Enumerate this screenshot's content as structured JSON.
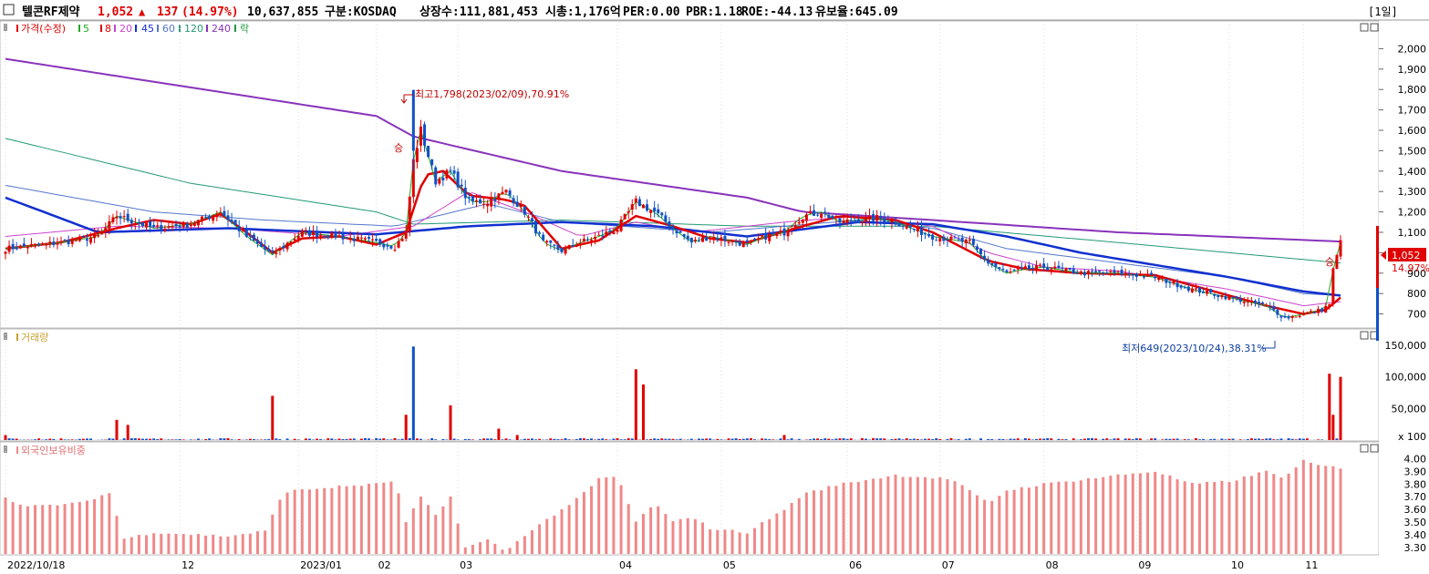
{
  "header": {
    "checkbox": "",
    "stock_name": "텔콘RF제약",
    "price": "1,052",
    "change_arrow": "▲",
    "change": "137",
    "change_pct": "(14.97%)",
    "volume": "10,637,855",
    "market": "구분:KOSDAQ",
    "shares": "상장수:111,881,453",
    "market_cap": "시총:1,176억",
    "per": "PER:0.00",
    "pbr": "PBR:1.18",
    "roe": "ROE:-44.13",
    "reserve": "유보율:645.09",
    "period": "[1일]"
  },
  "legend": {
    "price_label": "가격(수정)",
    "ma_labels": [
      "5",
      "8",
      "20",
      "45",
      "60",
      "120",
      "240"
    ],
    "fall_label": "락"
  },
  "panels": {
    "volume_title": "거래량",
    "foreign_title": "외국인보유비중"
  },
  "annotations": {
    "high": "최고1,798(2023/02/09),70.91%",
    "low": "최저649(2023/10/24),38.31%",
    "rights_mark": "승",
    "current_price": "1,052",
    "current_pct": "14.97%"
  },
  "colors": {
    "up": "#e00000",
    "down": "#1050c8",
    "ma5": "#22aa22",
    "ma8": "#e00000",
    "ma20": "#cc44cc",
    "ma45": "#1030d0",
    "ma60": "#5577cc",
    "ma120": "#229977",
    "ma240": "#8833bb",
    "foreign_bar": "#f08888"
  },
  "chart_data": [
    {
      "type": "line",
      "name": "price",
      "y_ticks": [
        "2,000",
        "1,900",
        "1,800",
        "1,700",
        "1,600",
        "1,500",
        "1,400",
        "1,300",
        "1,200",
        "1,100",
        "1,000",
        "900",
        "800",
        "700"
      ],
      "ylim": [
        640,
        2060
      ],
      "x_ticks": [
        "2022/10/18",
        "12",
        "2023/01",
        "02",
        "03",
        "04",
        "05",
        "06",
        "07",
        "08",
        "09",
        "10",
        "11"
      ],
      "close_keypoints": [
        [
          0,
          1020
        ],
        [
          15,
          1050
        ],
        [
          25,
          1080
        ],
        [
          30,
          1180
        ],
        [
          40,
          1120
        ],
        [
          50,
          1140
        ],
        [
          58,
          1200
        ],
        [
          65,
          1080
        ],
        [
          72,
          990
        ],
        [
          80,
          1100
        ],
        [
          90,
          1080
        ],
        [
          100,
          1050
        ],
        [
          105,
          1030
        ],
        [
          108,
          1100
        ],
        [
          110,
          1450
        ],
        [
          112,
          1600
        ],
        [
          116,
          1350
        ],
        [
          120,
          1400
        ],
        [
          125,
          1250
        ],
        [
          130,
          1250
        ],
        [
          135,
          1300
        ],
        [
          140,
          1200
        ],
        [
          145,
          1050
        ],
        [
          150,
          1010
        ],
        [
          155,
          1050
        ],
        [
          160,
          1080
        ],
        [
          165,
          1120
        ],
        [
          170,
          1250
        ],
        [
          175,
          1200
        ],
        [
          180,
          1120
        ],
        [
          185,
          1050
        ],
        [
          190,
          1080
        ],
        [
          195,
          1060
        ],
        [
          200,
          1040
        ],
        [
          205,
          1080
        ],
        [
          210,
          1100
        ],
        [
          215,
          1180
        ],
        [
          220,
          1200
        ],
        [
          225,
          1150
        ],
        [
          235,
          1170
        ],
        [
          240,
          1150
        ],
        [
          250,
          1080
        ],
        [
          260,
          1050
        ],
        [
          265,
          950
        ],
        [
          270,
          900
        ],
        [
          275,
          920
        ],
        [
          280,
          930
        ],
        [
          290,
          900
        ],
        [
          300,
          900
        ],
        [
          310,
          880
        ],
        [
          320,
          820
        ],
        [
          330,
          780
        ],
        [
          340,
          740
        ],
        [
          345,
          680
        ],
        [
          350,
          700
        ],
        [
          355,
          720
        ],
        [
          357,
          750
        ],
        [
          358,
          915
        ],
        [
          360,
          1052
        ]
      ],
      "ma_keypoints": {
        "ma240": [
          [
            0,
            1950
          ],
          [
            50,
            1810
          ],
          [
            100,
            1670
          ],
          [
            110,
            1570
          ],
          [
            150,
            1400
          ],
          [
            200,
            1270
          ],
          [
            215,
            1200
          ],
          [
            250,
            1160
          ],
          [
            300,
            1100
          ],
          [
            360,
            1055
          ]
        ],
        "ma120": [
          [
            0,
            1560
          ],
          [
            50,
            1340
          ],
          [
            100,
            1200
          ],
          [
            110,
            1140
          ],
          [
            150,
            1160
          ],
          [
            200,
            1130
          ],
          [
            250,
            1130
          ],
          [
            300,
            1050
          ],
          [
            360,
            950
          ]
        ],
        "ma60": [
          [
            0,
            1330
          ],
          [
            40,
            1200
          ],
          [
            70,
            1160
          ],
          [
            105,
            1130
          ],
          [
            130,
            1240
          ],
          [
            150,
            1150
          ],
          [
            190,
            1100
          ],
          [
            230,
            1160
          ],
          [
            250,
            1120
          ],
          [
            270,
            1020
          ],
          [
            300,
            950
          ],
          [
            330,
            880
          ],
          [
            350,
            800
          ],
          [
            360,
            790
          ]
        ],
        "ma45": [
          [
            0,
            1270
          ],
          [
            25,
            1100
          ],
          [
            60,
            1120
          ],
          [
            100,
            1090
          ],
          [
            125,
            1130
          ],
          [
            150,
            1150
          ],
          [
            175,
            1130
          ],
          [
            200,
            1080
          ],
          [
            230,
            1150
          ],
          [
            250,
            1140
          ],
          [
            270,
            1080
          ],
          [
            290,
            1000
          ],
          [
            330,
            880
          ],
          [
            350,
            810
          ],
          [
            360,
            790
          ]
        ],
        "ma20": [
          [
            0,
            1080
          ],
          [
            30,
            1130
          ],
          [
            60,
            1120
          ],
          [
            90,
            1080
          ],
          [
            110,
            1130
          ],
          [
            125,
            1300
          ],
          [
            140,
            1200
          ],
          [
            155,
            1080
          ],
          [
            170,
            1150
          ],
          [
            185,
            1100
          ],
          [
            210,
            1150
          ],
          [
            230,
            1180
          ],
          [
            250,
            1130
          ],
          [
            265,
            1000
          ],
          [
            280,
            930
          ],
          [
            300,
            910
          ],
          [
            330,
            820
          ],
          [
            350,
            740
          ],
          [
            360,
            760
          ]
        ],
        "ma8": [
          [
            0,
            1020
          ],
          [
            15,
            1050
          ],
          [
            30,
            1120
          ],
          [
            40,
            1160
          ],
          [
            50,
            1140
          ],
          [
            58,
            1190
          ],
          [
            65,
            1100
          ],
          [
            72,
            1000
          ],
          [
            80,
            1070
          ],
          [
            90,
            1080
          ],
          [
            100,
            1040
          ],
          [
            108,
            1100
          ],
          [
            113,
            1380
          ],
          [
            118,
            1400
          ],
          [
            125,
            1280
          ],
          [
            135,
            1260
          ],
          [
            140,
            1230
          ],
          [
            150,
            1020
          ],
          [
            160,
            1060
          ],
          [
            170,
            1180
          ],
          [
            180,
            1130
          ],
          [
            190,
            1070
          ],
          [
            200,
            1050
          ],
          [
            215,
            1130
          ],
          [
            225,
            1180
          ],
          [
            240,
            1160
          ],
          [
            250,
            1100
          ],
          [
            265,
            960
          ],
          [
            275,
            920
          ],
          [
            290,
            900
          ],
          [
            310,
            890
          ],
          [
            320,
            840
          ],
          [
            340,
            740
          ],
          [
            350,
            700
          ],
          [
            356,
            720
          ],
          [
            360,
            780
          ]
        ]
      },
      "volume_ticks": [
        "150,000",
        "100,000",
        "50,000",
        "x 100"
      ],
      "volume_spikes": [
        [
          0,
          8
        ],
        [
          30,
          32
        ],
        [
          33,
          24
        ],
        [
          72,
          70
        ],
        [
          108,
          40
        ],
        [
          110,
          148
        ],
        [
          120,
          55
        ],
        [
          133,
          18
        ],
        [
          138,
          8
        ],
        [
          170,
          112
        ],
        [
          172,
          88
        ],
        [
          210,
          8
        ],
        [
          357,
          105
        ],
        [
          358,
          40
        ],
        [
          360,
          100
        ]
      ],
      "foreign_ticks": [
        "4.00",
        "3.90",
        "3.80",
        "3.70",
        "3.60",
        "3.50",
        "3.40",
        "3.30"
      ],
      "foreign_keypoints": [
        [
          0,
          3.7
        ],
        [
          5,
          3.62
        ],
        [
          20,
          3.65
        ],
        [
          28,
          3.73
        ],
        [
          32,
          3.37
        ],
        [
          40,
          3.42
        ],
        [
          60,
          3.39
        ],
        [
          70,
          3.43
        ],
        [
          75,
          3.74
        ],
        [
          90,
          3.78
        ],
        [
          100,
          3.8
        ],
        [
          105,
          3.83
        ],
        [
          108,
          3.5
        ],
        [
          112,
          3.7
        ],
        [
          116,
          3.55
        ],
        [
          120,
          3.7
        ],
        [
          124,
          3.3
        ],
        [
          130,
          3.36
        ],
        [
          135,
          3.27
        ],
        [
          140,
          3.4
        ],
        [
          150,
          3.6
        ],
        [
          155,
          3.7
        ],
        [
          160,
          3.84
        ],
        [
          165,
          3.86
        ],
        [
          170,
          3.5
        ],
        [
          175,
          3.65
        ],
        [
          180,
          3.5
        ],
        [
          185,
          3.55
        ],
        [
          190,
          3.45
        ],
        [
          200,
          3.42
        ],
        [
          210,
          3.6
        ],
        [
          215,
          3.72
        ],
        [
          225,
          3.8
        ],
        [
          240,
          3.87
        ],
        [
          255,
          3.84
        ],
        [
          265,
          3.65
        ],
        [
          270,
          3.75
        ],
        [
          280,
          3.8
        ],
        [
          300,
          3.87
        ],
        [
          310,
          3.9
        ],
        [
          320,
          3.8
        ],
        [
          330,
          3.82
        ],
        [
          340,
          3.9
        ],
        [
          345,
          3.85
        ],
        [
          350,
          3.98
        ],
        [
          355,
          3.94
        ],
        [
          360,
          3.93
        ]
      ]
    }
  ]
}
